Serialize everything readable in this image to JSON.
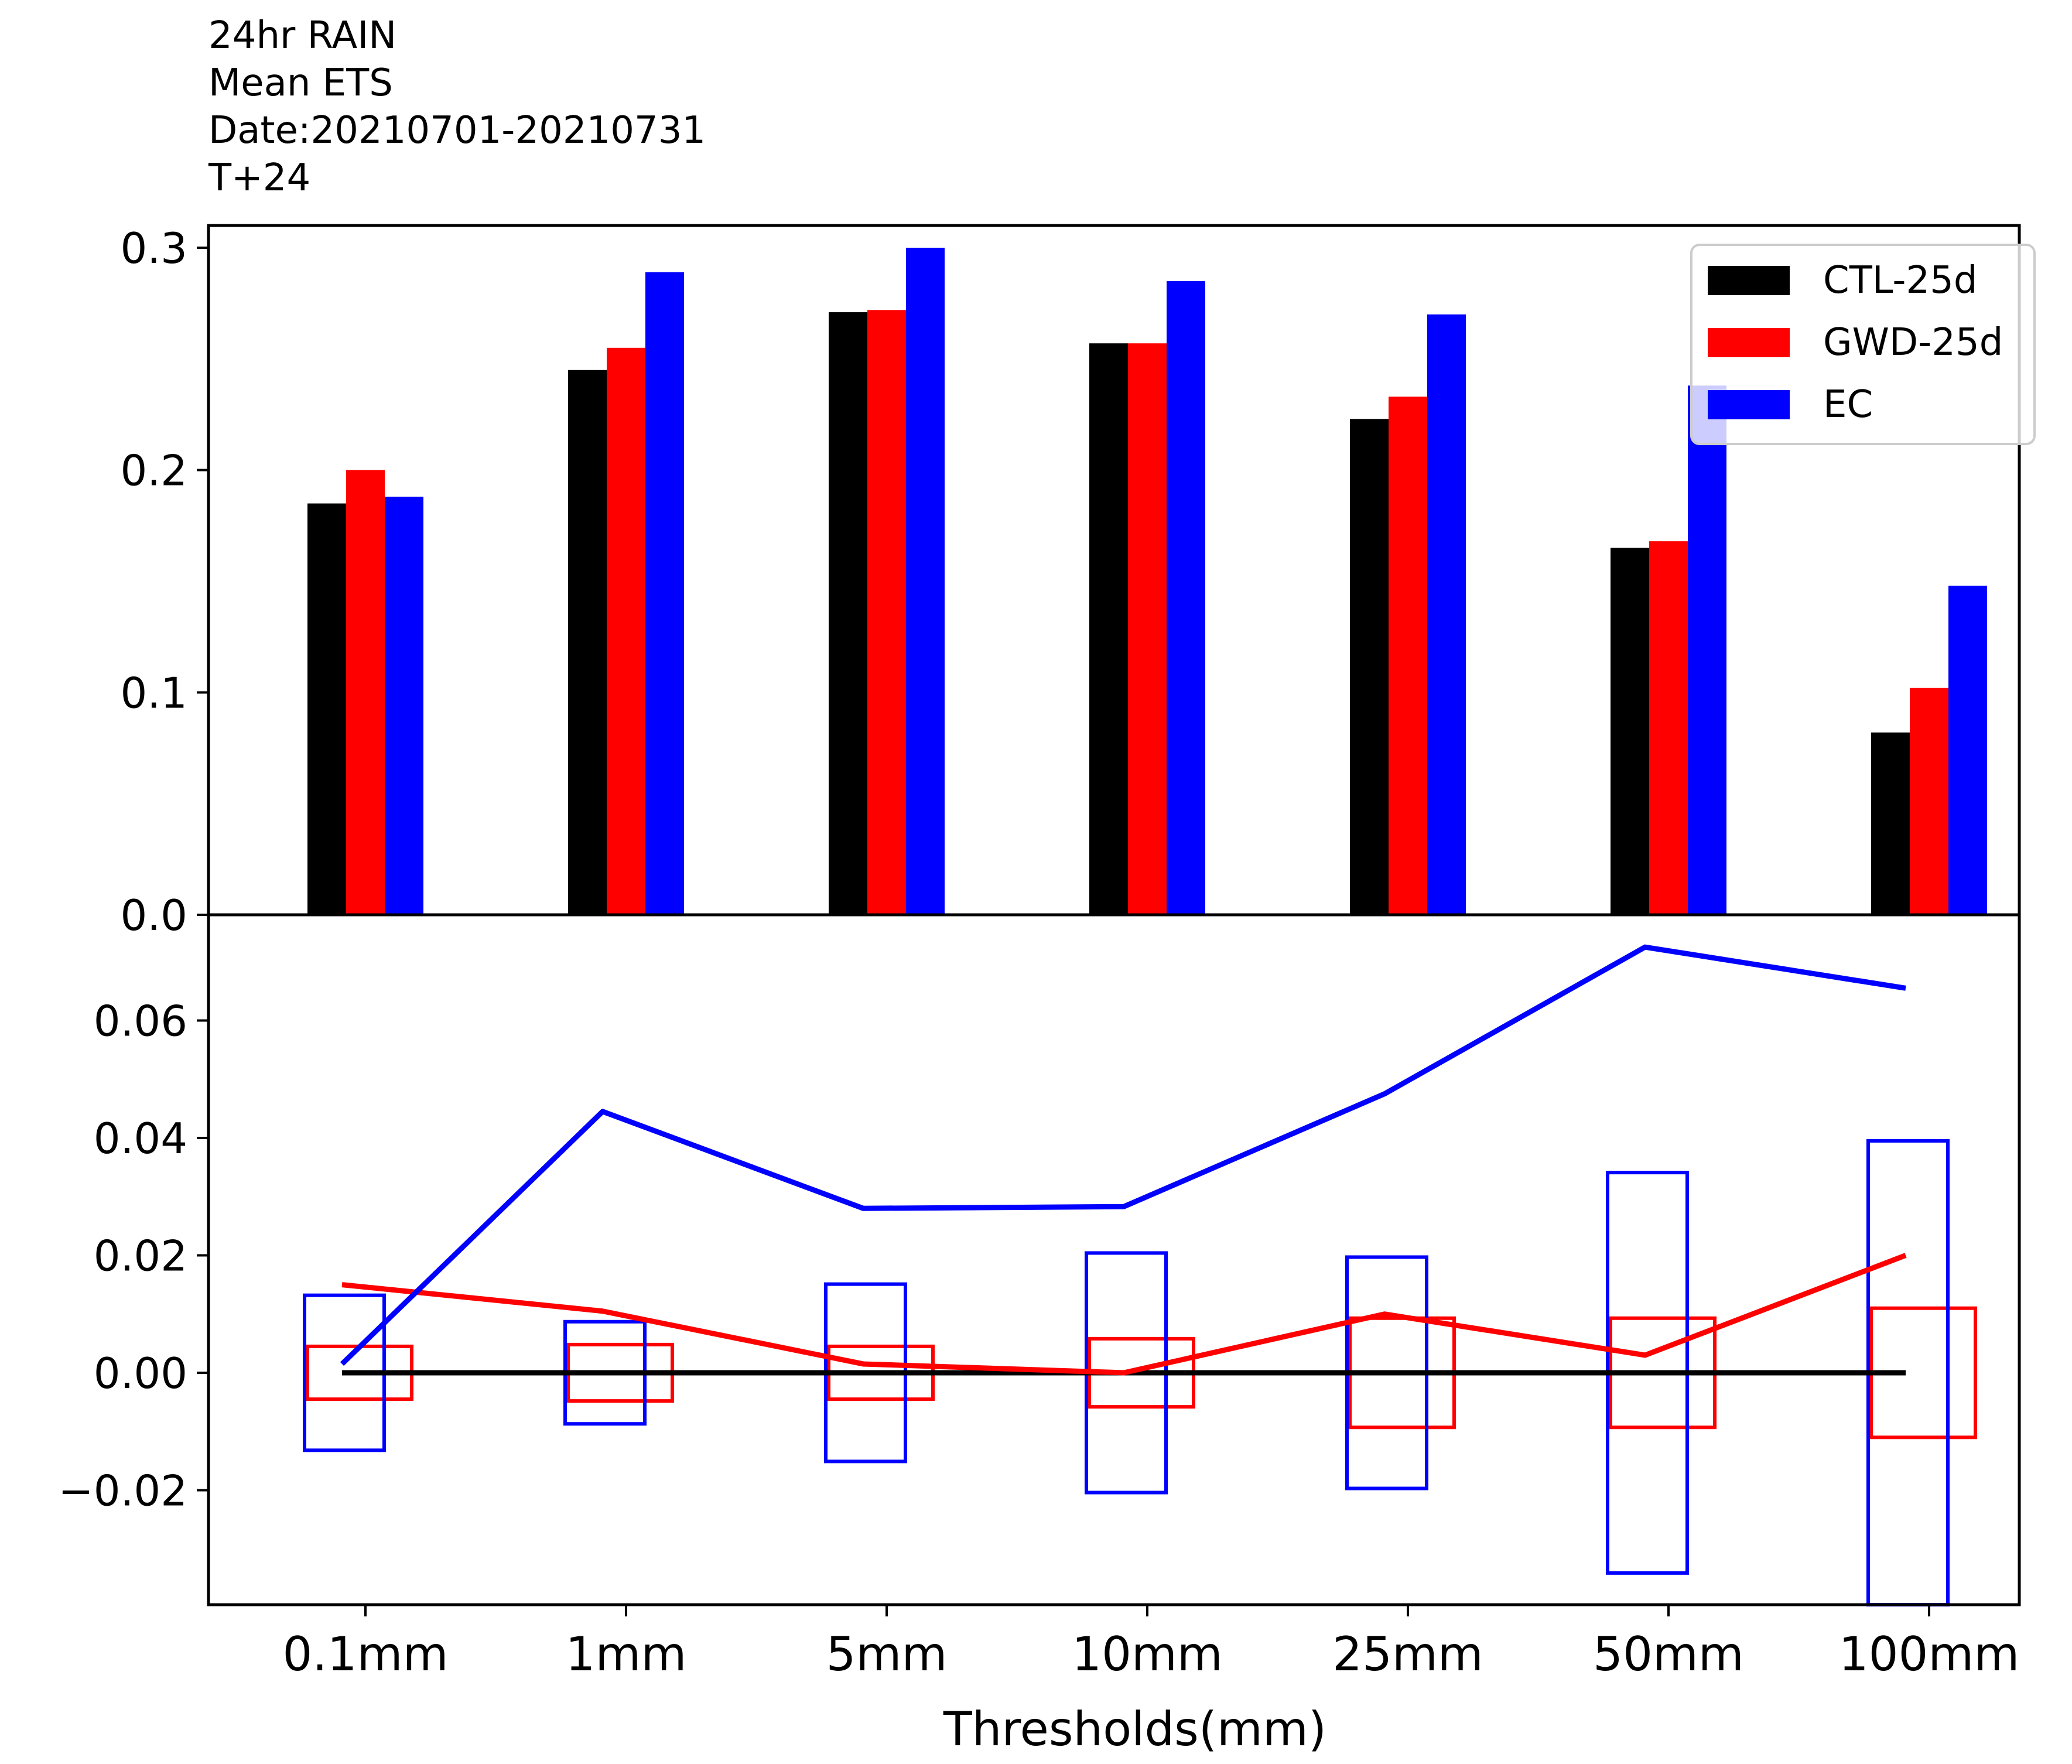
{
  "title_lines": [
    "24hr RAIN",
    "Mean ETS",
    "Date:20210701-20210731",
    "T+24"
  ],
  "colors": {
    "CTL-25d": "#000000",
    "GWD-25d": "#ff0000",
    "EC": "#0000ff"
  },
  "chart_data": [
    {
      "type": "bar",
      "panel": "top",
      "categories": [
        "0.1mm",
        "1mm",
        "5mm",
        "10mm",
        "25mm",
        "50mm",
        "100mm"
      ],
      "series": [
        {
          "name": "CTL-25d",
          "values": [
            0.185,
            0.245,
            0.271,
            0.257,
            0.223,
            0.165,
            0.082
          ]
        },
        {
          "name": "GWD-25d",
          "values": [
            0.2,
            0.255,
            0.272,
            0.257,
            0.233,
            0.168,
            0.102
          ]
        },
        {
          "name": "EC",
          "values": [
            0.188,
            0.289,
            0.3,
            0.285,
            0.27,
            0.238,
            0.148
          ]
        }
      ],
      "ylim": [
        0.0,
        0.31
      ],
      "yticks": [
        "0.0",
        "0.1",
        "0.2",
        "0.3"
      ],
      "legend": {
        "position": "top-right",
        "labels": [
          "CTL-25d",
          "GWD-25d",
          "EC"
        ]
      }
    },
    {
      "type": "line",
      "panel": "bottom",
      "categories": [
        "0.1mm",
        "1mm",
        "5mm",
        "10mm",
        "25mm",
        "50mm",
        "100mm"
      ],
      "series": [
        {
          "name": "CTL-25d",
          "values": [
            0.0,
            0.0,
            0.0,
            0.0,
            0.0,
            0.0,
            0.0
          ]
        },
        {
          "name": "GWD-25d",
          "values": [
            0.015,
            0.0105,
            0.0015,
            0.0,
            0.01,
            0.003,
            0.02
          ]
        },
        {
          "name": "EC",
          "values": [
            0.0015,
            0.0445,
            0.028,
            0.0283,
            0.0475,
            0.0725,
            0.0655
          ]
        }
      ],
      "confidence_boxes": [
        {
          "name": "GWD-25d",
          "halfwidths": [
            0.0045,
            0.0048,
            0.0045,
            0.0058,
            0.0093,
            0.0093,
            0.011
          ]
        },
        {
          "name": "EC",
          "halfwidths": [
            0.0132,
            0.0087,
            0.0151,
            0.0204,
            0.0197,
            0.0341,
            0.0395
          ]
        }
      ],
      "ylim": [
        -0.0395,
        0.078
      ],
      "yticks": [
        "−0.02",
        "0.00",
        "0.02",
        "0.04",
        "0.06"
      ],
      "xticks": [
        "0.1mm",
        "1mm",
        "5mm",
        "10mm",
        "25mm",
        "50mm",
        "100mm"
      ],
      "xlabel": "Thresholds(mm)"
    }
  ]
}
